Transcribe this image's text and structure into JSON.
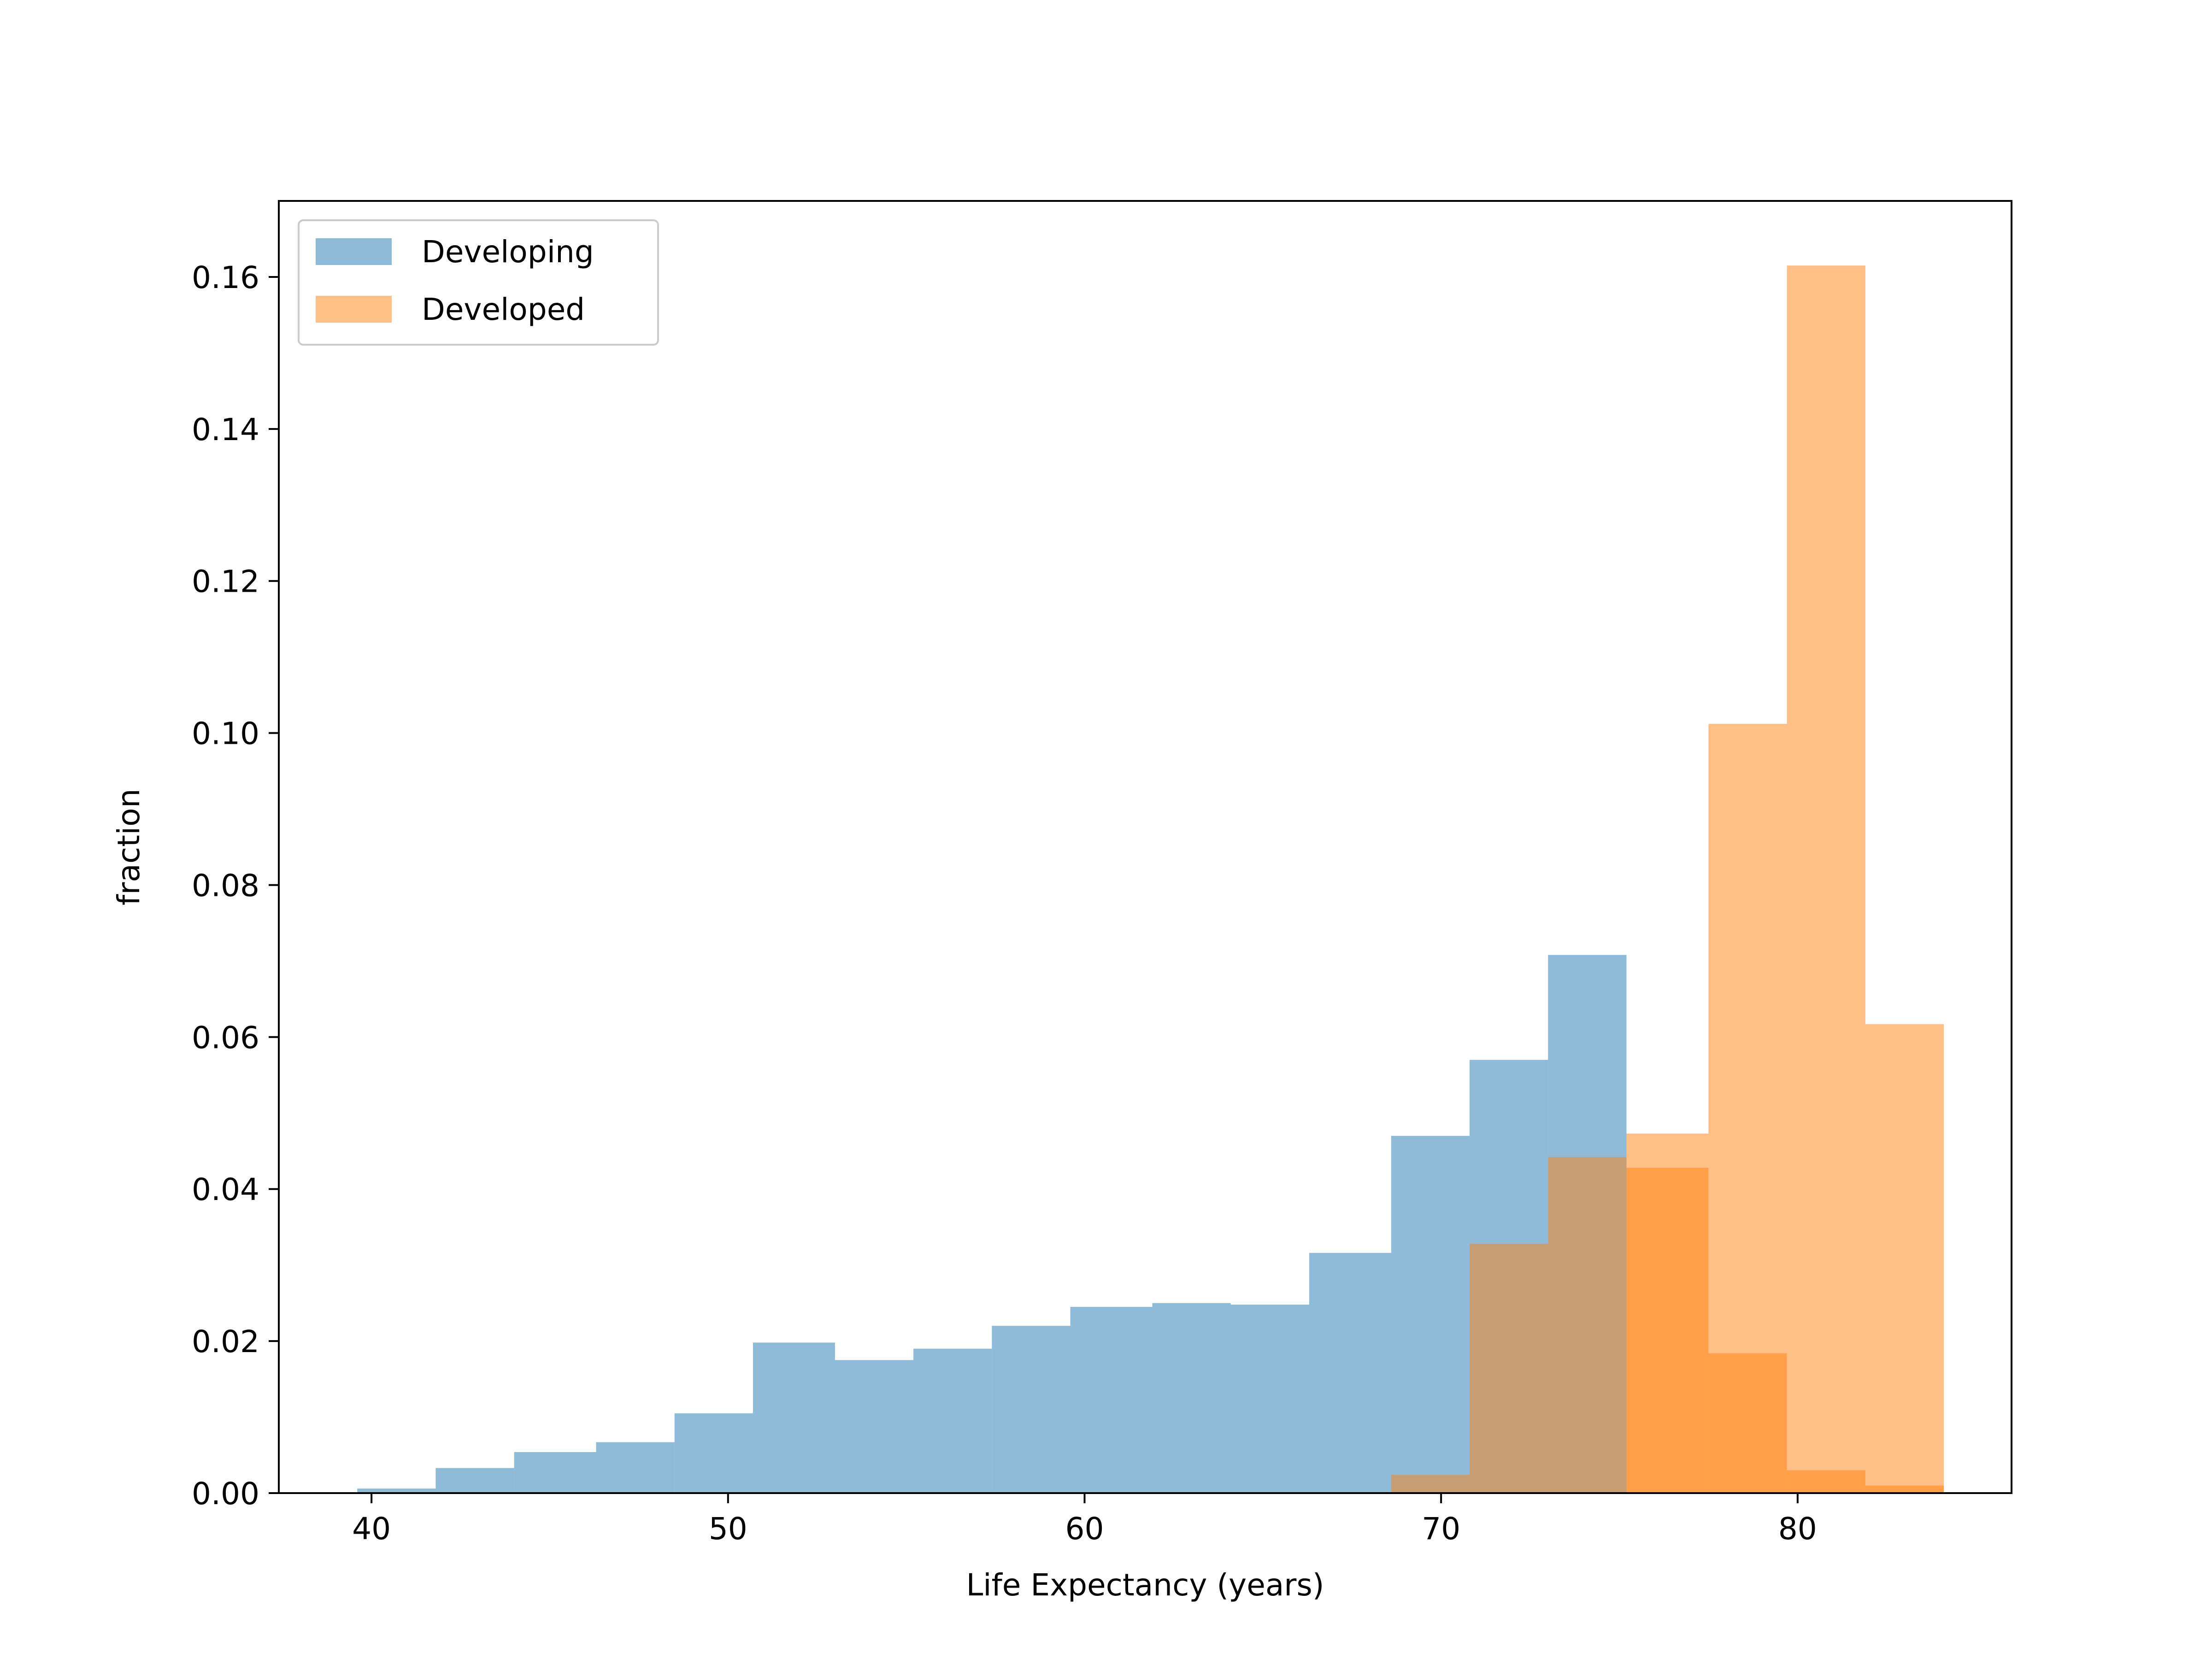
{
  "chart_data": {
    "type": "bar",
    "subtype": "overlapping-histogram",
    "xlabel": "Life Expectancy (years)",
    "ylabel": "fraction",
    "xlim": [
      37.4,
      86.0
    ],
    "ylim": [
      0,
      0.17
    ],
    "xticks": [
      40,
      50,
      60,
      70,
      80
    ],
    "yticks": [
      0.0,
      0.02,
      0.04,
      0.06,
      0.08,
      0.1,
      0.12,
      0.14,
      0.16
    ],
    "ytick_labels": [
      "0.00",
      "0.02",
      "0.04",
      "0.06",
      "0.08",
      "0.10",
      "0.12",
      "0.14",
      "0.16"
    ],
    "grid": false,
    "legend_position": "top-left",
    "series": [
      {
        "name": "Developing",
        "color": "#1f77b4",
        "alpha": 0.5,
        "bin_edges": [
          39.6,
          41.8,
          44.0,
          46.3,
          48.5,
          50.7,
          53.0,
          55.2,
          57.4,
          59.6,
          61.9,
          64.1,
          66.3,
          68.6,
          70.8,
          73.0,
          75.2
        ],
        "values": [
          0.0006,
          0.0033,
          0.0054,
          0.0067,
          0.0105,
          0.0198,
          0.0175,
          0.019,
          0.022,
          0.0245,
          0.025,
          0.0248,
          0.0316,
          0.047,
          0.057,
          0.0708
        ]
      },
      {
        "name": "Developed",
        "color": "#ff7f0e",
        "alpha": 0.5,
        "bin_edges": [
          68.6,
          70.8,
          73.0,
          75.2,
          77.5,
          79.7,
          81.9,
          84.1
        ],
        "values": [
          0.0024,
          0.0328,
          0.0442,
          0.0428,
          0.0184,
          0.003,
          0.001
        ],
        "extra_bins": {
          "bin_edges": [
            75.2,
            77.5,
            79.7,
            81.9,
            84.1
          ],
          "values": [
            0.0473,
            0.1012,
            0.1615,
            0.0617
          ]
        }
      }
    ]
  }
}
